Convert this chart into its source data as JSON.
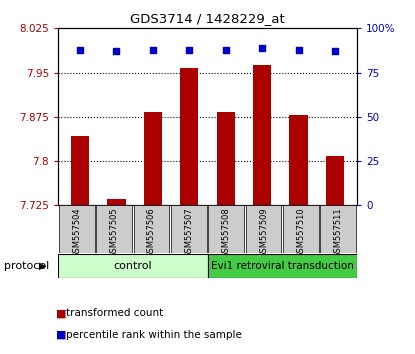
{
  "title": "GDS3714 / 1428229_at",
  "samples": [
    "GSM557504",
    "GSM557505",
    "GSM557506",
    "GSM557507",
    "GSM557508",
    "GSM557509",
    "GSM557510",
    "GSM557511"
  ],
  "transformed_counts": [
    7.843,
    7.735,
    7.884,
    7.958,
    7.884,
    7.963,
    7.878,
    7.808
  ],
  "percentile_ranks": [
    88,
    87,
    88,
    88,
    88,
    89,
    88,
    87
  ],
  "bar_color": "#aa0000",
  "dot_color": "#0000cc",
  "ymin": 7.725,
  "ymax": 8.025,
  "y2min": 0,
  "y2max": 100,
  "yticks": [
    7.725,
    7.8,
    7.875,
    7.95,
    8.025
  ],
  "y2ticks": [
    0,
    25,
    50,
    75,
    100
  ],
  "gridlines": [
    7.95,
    7.875,
    7.8
  ],
  "num_control": 4,
  "num_treatment": 4,
  "control_label": "control",
  "treatment_label": "Evi1 retroviral transduction",
  "protocol_label": "protocol",
  "legend_bar_label": "transformed count",
  "legend_dot_label": "percentile rank within the sample",
  "control_bg": "#ccffcc",
  "treatment_bg": "#44cc44",
  "sample_bg": "#cccccc",
  "bar_width": 0.5
}
